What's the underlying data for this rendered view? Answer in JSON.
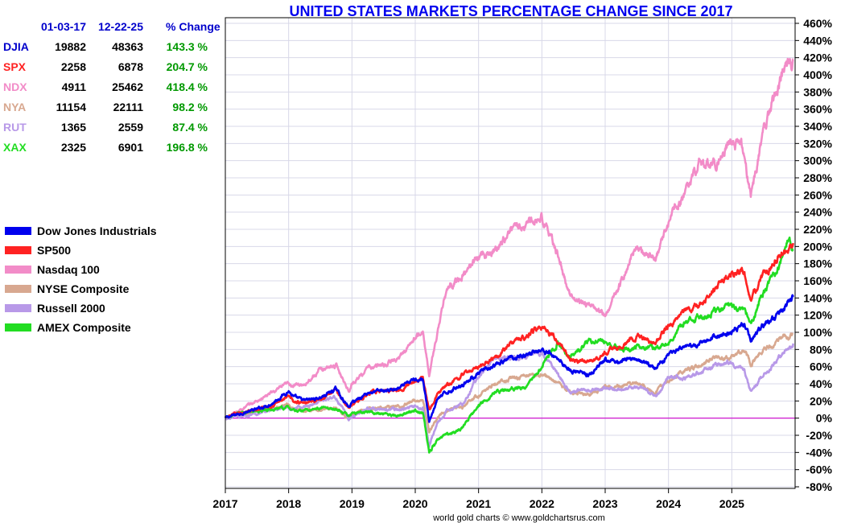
{
  "chart_data": {
    "type": "line",
    "title": "UNITED STATES MARKETS PERCENTAGE CHANGE SINCE 2017",
    "credit": "world gold charts © www.goldchartsrus.com",
    "xlabel": "",
    "ylabel": "",
    "xlim": [
      2017.0,
      2026.0
    ],
    "ylim": [
      -80,
      460
    ],
    "y_ticks": [
      -80,
      -60,
      -40,
      -20,
      0,
      20,
      40,
      60,
      80,
      100,
      120,
      140,
      160,
      180,
      200,
      220,
      240,
      260,
      280,
      300,
      320,
      340,
      360,
      380,
      400,
      420,
      440,
      460
    ],
    "y_tick_suffix": "%",
    "x_ticks": [
      2017,
      2018,
      2019,
      2020,
      2021,
      2022,
      2023,
      2024,
      2025
    ],
    "grid": true,
    "zero_line_color": "#cc00cc",
    "table": {
      "headers": [
        "01-03-17",
        "12-22-25",
        "% Change"
      ],
      "rows": [
        {
          "symbol": "DJIA",
          "start": "19882",
          "end": "48363",
          "change": "143.3 %",
          "color": "#0000cc"
        },
        {
          "symbol": "SPX",
          "start": "2258",
          "end": "6878",
          "change": "204.7 %",
          "color": "#ff2222"
        },
        {
          "symbol": "NDX",
          "start": "4911",
          "end": "25462",
          "change": "418.4 %",
          "color": "#f28cc8"
        },
        {
          "symbol": "NYA",
          "start": "11154",
          "end": "22111",
          "change": "98.2 %",
          "color": "#d8a890"
        },
        {
          "symbol": "RUT",
          "start": "1365",
          "end": "2559",
          "change": "87.4 %",
          "color": "#b899e8"
        },
        {
          "symbol": "XAX",
          "start": "2325",
          "end": "6901",
          "change": "196.8 %",
          "color": "#22dd22"
        }
      ]
    },
    "series": [
      {
        "name": "Dow Jones Industrials",
        "color": "#0000ee",
        "points": [
          [
            2017.0,
            0
          ],
          [
            2017.25,
            6
          ],
          [
            2017.5,
            10
          ],
          [
            2017.75,
            18
          ],
          [
            2018.0,
            32
          ],
          [
            2018.08,
            24
          ],
          [
            2018.25,
            20
          ],
          [
            2018.5,
            24
          ],
          [
            2018.75,
            34
          ],
          [
            2018.95,
            12
          ],
          [
            2019.0,
            18
          ],
          [
            2019.25,
            30
          ],
          [
            2019.5,
            32
          ],
          [
            2019.75,
            34
          ],
          [
            2020.0,
            46
          ],
          [
            2020.12,
            46
          ],
          [
            2020.22,
            -4
          ],
          [
            2020.35,
            22
          ],
          [
            2020.5,
            30
          ],
          [
            2020.75,
            40
          ],
          [
            2021.0,
            52
          ],
          [
            2021.25,
            60
          ],
          [
            2021.5,
            70
          ],
          [
            2021.75,
            74
          ],
          [
            2022.0,
            80
          ],
          [
            2022.25,
            70
          ],
          [
            2022.45,
            56
          ],
          [
            2022.75,
            50
          ],
          [
            2023.0,
            66
          ],
          [
            2023.25,
            66
          ],
          [
            2023.5,
            70
          ],
          [
            2023.8,
            58
          ],
          [
            2024.0,
            76
          ],
          [
            2024.25,
            80
          ],
          [
            2024.5,
            86
          ],
          [
            2024.75,
            96
          ],
          [
            2025.0,
            100
          ],
          [
            2025.2,
            110
          ],
          [
            2025.3,
            92
          ],
          [
            2025.5,
            108
          ],
          [
            2025.75,
            122
          ],
          [
            2025.97,
            143
          ]
        ]
      },
      {
        "name": "SP500",
        "color": "#ff2222",
        "points": [
          [
            2017.0,
            0
          ],
          [
            2017.25,
            6
          ],
          [
            2017.5,
            10
          ],
          [
            2017.75,
            16
          ],
          [
            2018.0,
            24
          ],
          [
            2018.1,
            18
          ],
          [
            2018.5,
            22
          ],
          [
            2018.75,
            32
          ],
          [
            2018.95,
            12
          ],
          [
            2019.0,
            16
          ],
          [
            2019.25,
            28
          ],
          [
            2019.5,
            32
          ],
          [
            2019.75,
            34
          ],
          [
            2020.0,
            44
          ],
          [
            2020.12,
            48
          ],
          [
            2020.22,
            8
          ],
          [
            2020.35,
            28
          ],
          [
            2020.5,
            38
          ],
          [
            2020.75,
            50
          ],
          [
            2021.0,
            60
          ],
          [
            2021.25,
            72
          ],
          [
            2021.5,
            86
          ],
          [
            2021.75,
            96
          ],
          [
            2022.0,
            108
          ],
          [
            2022.25,
            90
          ],
          [
            2022.45,
            68
          ],
          [
            2022.75,
            64
          ],
          [
            2023.0,
            76
          ],
          [
            2023.25,
            84
          ],
          [
            2023.5,
            96
          ],
          [
            2023.8,
            88
          ],
          [
            2024.0,
            108
          ],
          [
            2024.25,
            124
          ],
          [
            2024.5,
            132
          ],
          [
            2024.75,
            152
          ],
          [
            2025.0,
            168
          ],
          [
            2025.2,
            170
          ],
          [
            2025.3,
            136
          ],
          [
            2025.5,
            164
          ],
          [
            2025.75,
            190
          ],
          [
            2025.97,
            204
          ]
        ]
      },
      {
        "name": "Nasdaq 100",
        "color": "#f28cc8",
        "points": [
          [
            2017.0,
            0
          ],
          [
            2017.25,
            10
          ],
          [
            2017.5,
            20
          ],
          [
            2017.75,
            30
          ],
          [
            2018.0,
            40
          ],
          [
            2018.1,
            38
          ],
          [
            2018.25,
            40
          ],
          [
            2018.5,
            56
          ],
          [
            2018.75,
            62
          ],
          [
            2018.95,
            32
          ],
          [
            2019.0,
            40
          ],
          [
            2019.25,
            58
          ],
          [
            2019.5,
            62
          ],
          [
            2019.75,
            70
          ],
          [
            2020.0,
            94
          ],
          [
            2020.12,
            100
          ],
          [
            2020.22,
            50
          ],
          [
            2020.35,
            100
          ],
          [
            2020.5,
            150
          ],
          [
            2020.75,
            166
          ],
          [
            2021.0,
            190
          ],
          [
            2021.25,
            194
          ],
          [
            2021.5,
            220
          ],
          [
            2021.75,
            226
          ],
          [
            2022.0,
            236
          ],
          [
            2022.25,
            190
          ],
          [
            2022.45,
            140
          ],
          [
            2022.75,
            132
          ],
          [
            2023.0,
            120
          ],
          [
            2023.25,
            160
          ],
          [
            2023.5,
            200
          ],
          [
            2023.8,
            184
          ],
          [
            2024.0,
            230
          ],
          [
            2024.25,
            260
          ],
          [
            2024.5,
            300
          ],
          [
            2024.75,
            296
          ],
          [
            2025.0,
            320
          ],
          [
            2025.15,
            320
          ],
          [
            2025.3,
            256
          ],
          [
            2025.5,
            336
          ],
          [
            2025.75,
            392
          ],
          [
            2025.9,
            420
          ],
          [
            2025.97,
            418
          ]
        ]
      },
      {
        "name": "NYSE Composite",
        "color": "#d8a890",
        "points": [
          [
            2017.0,
            0
          ],
          [
            2017.25,
            4
          ],
          [
            2017.5,
            8
          ],
          [
            2017.75,
            12
          ],
          [
            2018.0,
            16
          ],
          [
            2018.1,
            10
          ],
          [
            2018.5,
            10
          ],
          [
            2018.75,
            12
          ],
          [
            2018.95,
            -2
          ],
          [
            2019.0,
            2
          ],
          [
            2019.25,
            12
          ],
          [
            2019.5,
            12
          ],
          [
            2019.75,
            14
          ],
          [
            2020.0,
            20
          ],
          [
            2020.12,
            22
          ],
          [
            2020.22,
            -16
          ],
          [
            2020.35,
            0
          ],
          [
            2020.5,
            8
          ],
          [
            2020.75,
            14
          ],
          [
            2021.0,
            26
          ],
          [
            2021.25,
            40
          ],
          [
            2021.5,
            46
          ],
          [
            2021.75,
            48
          ],
          [
            2022.0,
            52
          ],
          [
            2022.25,
            40
          ],
          [
            2022.45,
            30
          ],
          [
            2022.75,
            28
          ],
          [
            2023.0,
            36
          ],
          [
            2023.25,
            36
          ],
          [
            2023.5,
            40
          ],
          [
            2023.8,
            30
          ],
          [
            2024.0,
            44
          ],
          [
            2024.25,
            56
          ],
          [
            2024.5,
            62
          ],
          [
            2024.75,
            70
          ],
          [
            2025.0,
            72
          ],
          [
            2025.2,
            78
          ],
          [
            2025.3,
            64
          ],
          [
            2025.5,
            80
          ],
          [
            2025.75,
            90
          ],
          [
            2025.97,
            98
          ]
        ]
      },
      {
        "name": "Russell 2000",
        "color": "#b899e8",
        "points": [
          [
            2017.0,
            0
          ],
          [
            2017.25,
            2
          ],
          [
            2017.5,
            6
          ],
          [
            2017.75,
            10
          ],
          [
            2018.0,
            12
          ],
          [
            2018.1,
            10
          ],
          [
            2018.5,
            20
          ],
          [
            2018.75,
            24
          ],
          [
            2018.95,
            -2
          ],
          [
            2019.0,
            2
          ],
          [
            2019.25,
            12
          ],
          [
            2019.5,
            10
          ],
          [
            2019.75,
            10
          ],
          [
            2020.0,
            14
          ],
          [
            2020.12,
            12
          ],
          [
            2020.22,
            -30
          ],
          [
            2020.35,
            -6
          ],
          [
            2020.5,
            8
          ],
          [
            2020.75,
            16
          ],
          [
            2021.0,
            50
          ],
          [
            2021.25,
            68
          ],
          [
            2021.5,
            70
          ],
          [
            2021.75,
            72
          ],
          [
            2022.0,
            76
          ],
          [
            2022.25,
            52
          ],
          [
            2022.45,
            30
          ],
          [
            2022.75,
            34
          ],
          [
            2023.0,
            36
          ],
          [
            2023.25,
            32
          ],
          [
            2023.5,
            36
          ],
          [
            2023.8,
            26
          ],
          [
            2024.0,
            48
          ],
          [
            2024.25,
            46
          ],
          [
            2024.5,
            54
          ],
          [
            2024.75,
            64
          ],
          [
            2025.0,
            66
          ],
          [
            2025.2,
            54
          ],
          [
            2025.3,
            32
          ],
          [
            2025.5,
            50
          ],
          [
            2025.75,
            70
          ],
          [
            2025.97,
            87
          ]
        ]
      },
      {
        "name": "AMEX Composite",
        "color": "#22dd22",
        "points": [
          [
            2017.0,
            0
          ],
          [
            2017.25,
            6
          ],
          [
            2017.5,
            8
          ],
          [
            2017.75,
            10
          ],
          [
            2018.0,
            12
          ],
          [
            2018.1,
            8
          ],
          [
            2018.5,
            12
          ],
          [
            2018.75,
            10
          ],
          [
            2018.95,
            2
          ],
          [
            2019.0,
            6
          ],
          [
            2019.25,
            8
          ],
          [
            2019.5,
            4
          ],
          [
            2019.75,
            4
          ],
          [
            2020.0,
            8
          ],
          [
            2020.12,
            6
          ],
          [
            2020.22,
            -42
          ],
          [
            2020.35,
            -24
          ],
          [
            2020.5,
            -20
          ],
          [
            2020.75,
            -10
          ],
          [
            2021.0,
            16
          ],
          [
            2021.25,
            30
          ],
          [
            2021.5,
            34
          ],
          [
            2021.75,
            36
          ],
          [
            2022.0,
            60
          ],
          [
            2022.25,
            88
          ],
          [
            2022.45,
            70
          ],
          [
            2022.5,
            76
          ],
          [
            2022.75,
            90
          ],
          [
            2023.0,
            88
          ],
          [
            2023.25,
            80
          ],
          [
            2023.5,
            84
          ],
          [
            2023.8,
            82
          ],
          [
            2024.0,
            88
          ],
          [
            2024.25,
            110
          ],
          [
            2024.5,
            118
          ],
          [
            2024.75,
            124
          ],
          [
            2025.0,
            130
          ],
          [
            2025.2,
            128
          ],
          [
            2025.3,
            110
          ],
          [
            2025.5,
            148
          ],
          [
            2025.75,
            176
          ],
          [
            2025.9,
            214
          ],
          [
            2025.97,
            197
          ]
        ]
      }
    ]
  }
}
